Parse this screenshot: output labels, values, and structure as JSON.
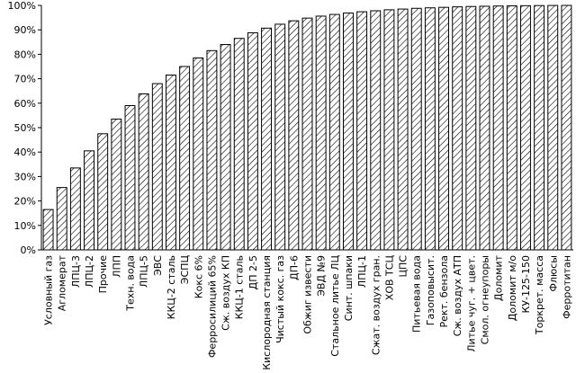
{
  "chart_data": {
    "type": "bar",
    "title": "",
    "xlabel": "",
    "ylabel": "",
    "ylim": [
      0,
      100
    ],
    "yticks": [
      "0%",
      "10%",
      "20%",
      "30%",
      "40%",
      "50%",
      "60%",
      "70%",
      "80%",
      "90%",
      "100%"
    ],
    "grid": false,
    "bar_fill": "hatched",
    "colors": {
      "bar_fill": "#ffffff",
      "bar_stroke": "#000000",
      "hatch": "#000000",
      "axis": "#000000"
    },
    "categories": [
      "Условный газ",
      "Агломерат",
      "ЛПЦ-3",
      "ЛПЦ-2",
      "Прочие",
      "ЛПП",
      "Техн. вода",
      "ЛПЦ-5",
      "ЭВС",
      "ККЦ-2 сталь",
      "ЭСПЦ",
      "Кокс 6%",
      "Ферросилиций 65%",
      "Сж. воздух КП",
      "ККЦ-1 сталь",
      "ДП 2-5",
      "Кислородная станция",
      "Чистый кокс. газ",
      "ДП-6",
      "Обжиг извести",
      "ЭВД №9",
      "Стальное литье ЛЦ",
      "Синт. шпаки",
      "ЛПЦ-1",
      "Сжат. воздух гран.",
      "ХОВ ТСЦ",
      "ЦПС",
      "Питьевая вода",
      "Газоповысит.",
      "Рект. бензола",
      "Сж. воздух АТП",
      "Литье чуг. + цвет.",
      "Смол. огнеупоры",
      "Доломит",
      "Доломит м/о",
      "КУ-125-150",
      "Торкрет. масса",
      "Флюсы",
      "Ферротитан"
    ],
    "values": [
      16.5,
      25.5,
      33.5,
      40.5,
      47.5,
      53.5,
      59,
      63.8,
      68,
      71.5,
      75,
      78.5,
      81.5,
      84,
      86.5,
      88.8,
      90.7,
      92.3,
      93.7,
      94.8,
      95.6,
      96.3,
      96.9,
      97.4,
      97.8,
      98.2,
      98.5,
      98.8,
      99,
      99.2,
      99.4,
      99.55,
      99.65,
      99.75,
      99.82,
      99.88,
      99.93,
      99.97,
      100
    ]
  }
}
